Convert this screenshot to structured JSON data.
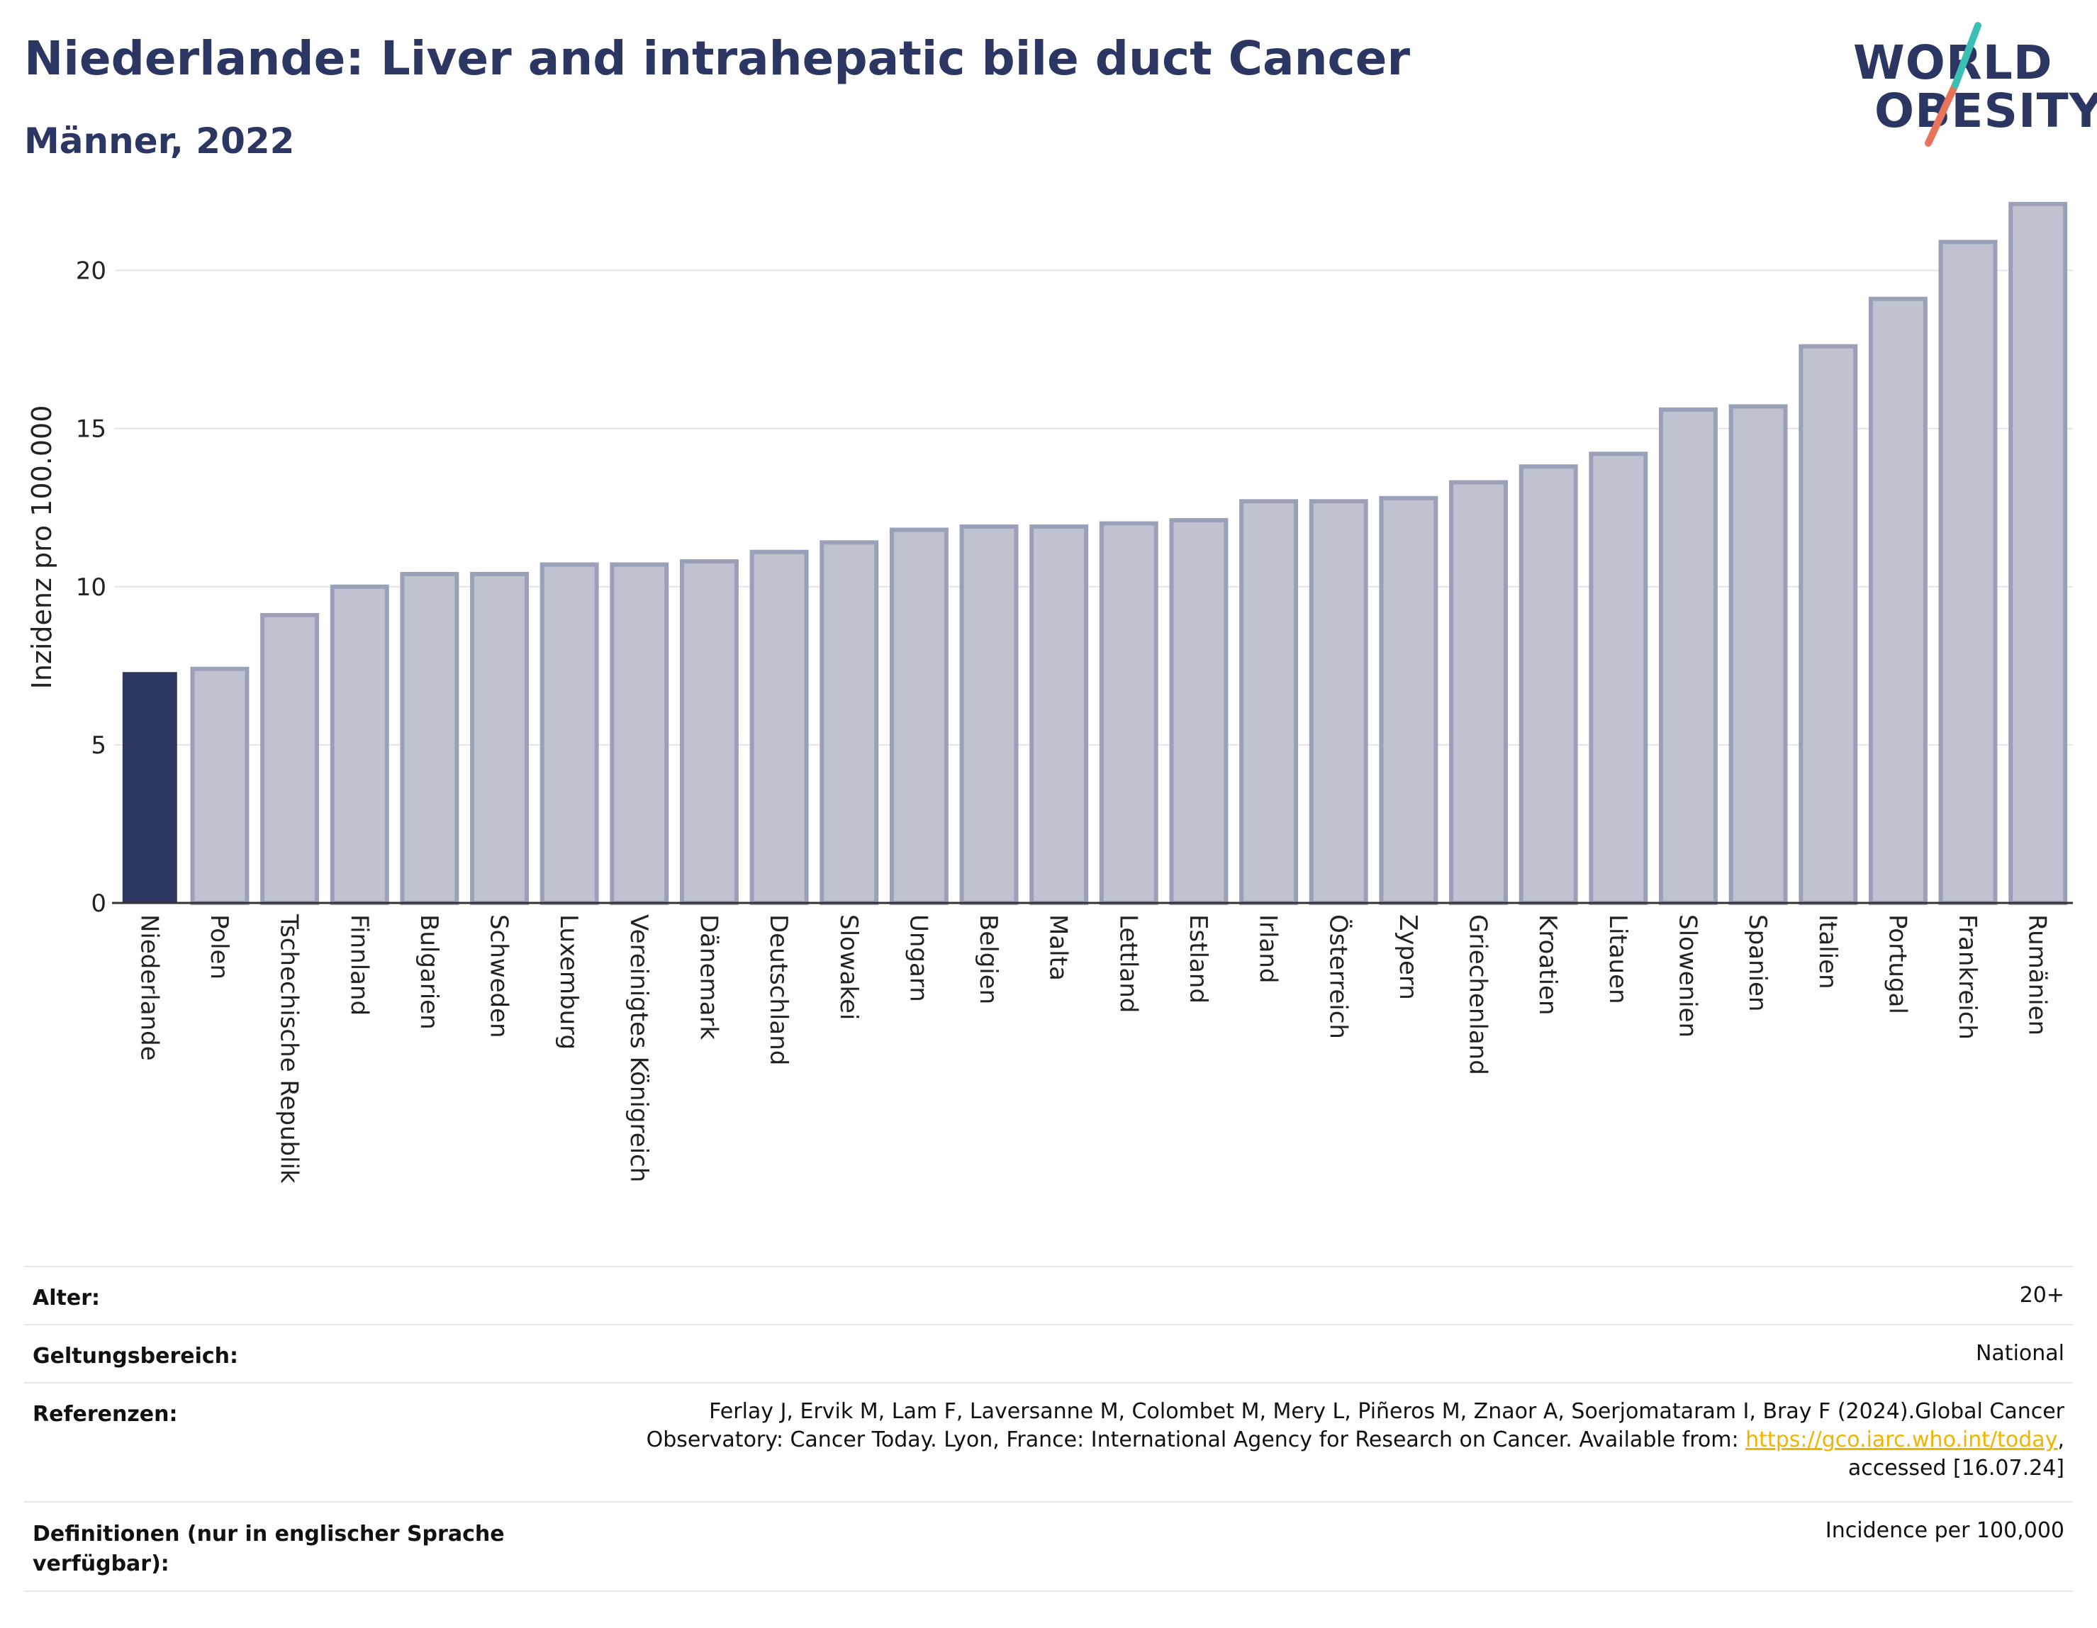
{
  "title": "Niederlande: Liver and intrahepatic bile duct Cancer",
  "subtitle": "Männer, 2022",
  "logo": {
    "line1": "WORLD",
    "line2": "OBESITY",
    "accent_teal": "#3bbfb3",
    "accent_coral": "#e8735a"
  },
  "chart_data": {
    "type": "bar",
    "ylabel": "Inzidenz pro 100.000",
    "ylim": [
      0,
      22.5
    ],
    "yticks": [
      0,
      5,
      10,
      15,
      20
    ],
    "grid": true,
    "highlight_color": "#2c3662",
    "bar_color": "#bfc2d1",
    "bar_border_color": "#9aa0b8",
    "highlight_index": 0,
    "categories": [
      "Niederlande",
      "Polen",
      "Tschechische Republik",
      "Finnland",
      "Bulgarien",
      "Schweden",
      "Luxemburg",
      "Vereinigtes Königreich",
      "Dänemark",
      "Deutschland",
      "Slowakei",
      "Ungarn",
      "Belgien",
      "Malta",
      "Lettland",
      "Estland",
      "Irland",
      "Österreich",
      "Zypern",
      "Griechenland",
      "Kroatien",
      "Litauen",
      "Slowenien",
      "Spanien",
      "Italien",
      "Portugal",
      "Frankreich",
      "Rumänien"
    ],
    "values": [
      7.3,
      7.4,
      9.1,
      10.0,
      10.4,
      10.4,
      10.7,
      10.7,
      10.8,
      11.1,
      11.4,
      11.8,
      11.9,
      11.9,
      12.0,
      12.1,
      12.7,
      12.7,
      12.8,
      13.3,
      13.8,
      14.2,
      15.6,
      15.7,
      17.6,
      19.1,
      20.9,
      22.1
    ]
  },
  "meta": [
    {
      "label": "Alter:",
      "value": "20+"
    },
    {
      "label": "Geltungsbereich:",
      "value": "National"
    },
    {
      "label": "Referenzen:",
      "value_lines": [
        "Ferlay J, Ervik M, Lam F, Laversanne M, Colombet M, Mery L, Piñeros M, Znaor A, Soerjomataram I, Bray F (2024).Global Cancer",
        "Observatory: Cancer Today. Lyon, France: International Agency for Research on Cancer. Available from: "
      ],
      "link": "https://gco.iarc.who.int/today",
      "after_link": ",",
      "last_line": "accessed [16.07.24]"
    },
    {
      "label_lines": [
        "Definitionen (nur in englischer Sprache",
        "verfügbar):"
      ],
      "value": "Incidence per 100,000"
    }
  ]
}
